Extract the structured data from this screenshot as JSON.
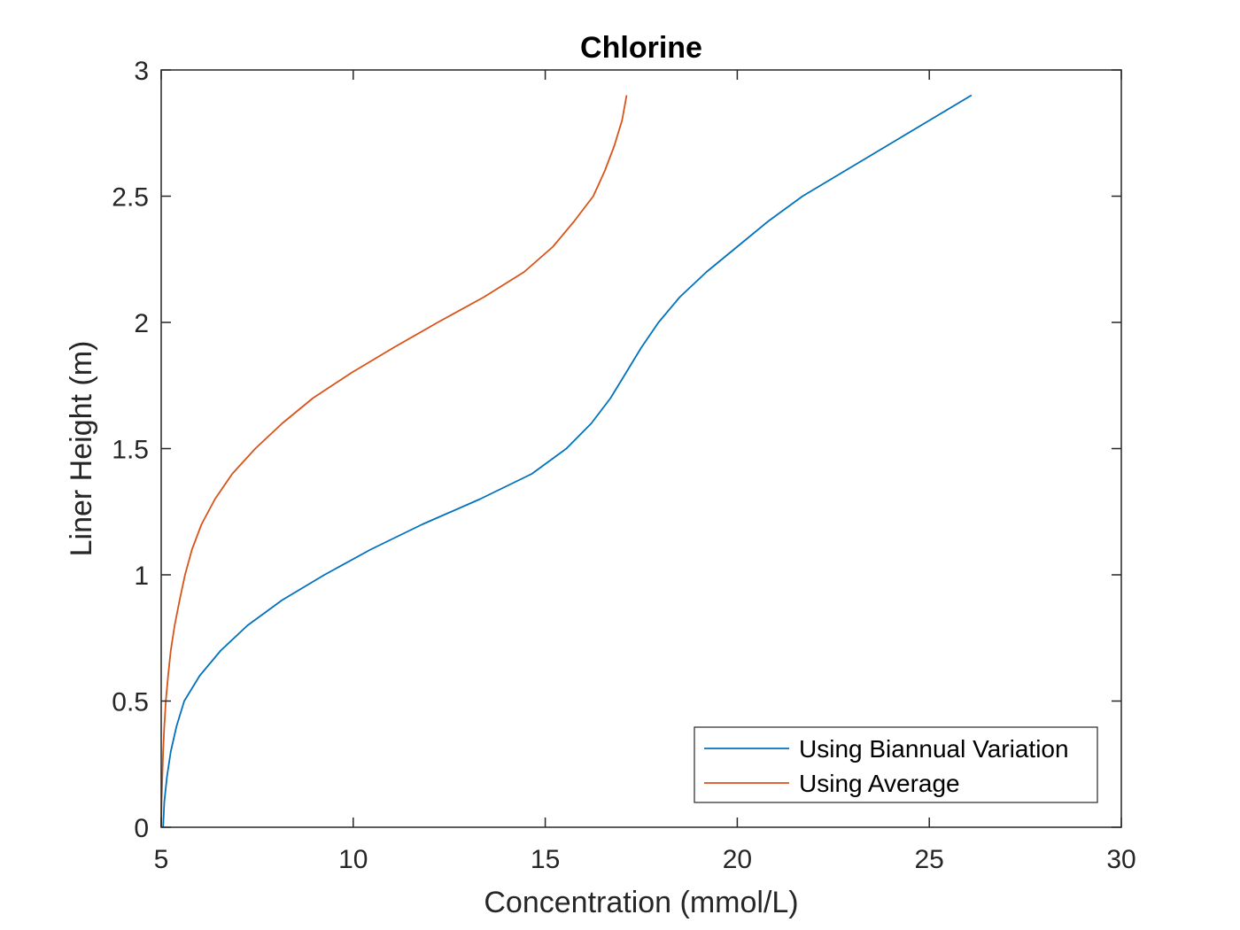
{
  "chart_data": {
    "type": "line",
    "title": "Chlorine",
    "xlabel": "Concentration (mmol/L)",
    "ylabel": "Liner Height (m)",
    "xlim": [
      5,
      30
    ],
    "ylim": [
      0,
      3
    ],
    "xticks": [
      5,
      10,
      15,
      20,
      25,
      30
    ],
    "yticks": [
      0,
      0.5,
      1,
      1.5,
      2,
      2.5,
      3
    ],
    "xtick_labels": [
      "5",
      "10",
      "15",
      "20",
      "25",
      "30"
    ],
    "ytick_labels": [
      "0",
      "0.5",
      "1",
      "1.5",
      "2",
      "2.5",
      "3"
    ],
    "grid": false,
    "legend_position": "bottom-right",
    "series": [
      {
        "name": "Using Biannual Variation",
        "color": "#0072BD",
        "x": [
          5.05,
          5.08,
          5.15,
          5.25,
          5.4,
          5.6,
          6.0,
          6.55,
          7.25,
          8.15,
          9.25,
          10.45,
          11.8,
          13.3,
          14.65,
          15.55,
          16.2,
          16.7,
          17.1,
          17.5,
          17.95,
          18.5,
          19.2,
          20.0,
          20.8,
          21.7,
          22.8,
          23.9,
          25.0,
          26.1
        ],
        "y": [
          0,
          0.1,
          0.2,
          0.3,
          0.4,
          0.5,
          0.6,
          0.7,
          0.8,
          0.9,
          1.0,
          1.1,
          1.2,
          1.3,
          1.4,
          1.5,
          1.6,
          1.7,
          1.8,
          1.9,
          2.0,
          2.1,
          2.2,
          2.3,
          2.4,
          2.5,
          2.6,
          2.7,
          2.8,
          2.9
        ]
      },
      {
        "name": "Using Average",
        "color": "#D95319",
        "x": [
          5.0,
          5.01,
          5.03,
          5.05,
          5.08,
          5.12,
          5.18,
          5.25,
          5.35,
          5.48,
          5.62,
          5.8,
          6.05,
          6.4,
          6.85,
          7.45,
          8.15,
          8.95,
          9.95,
          11.05,
          12.2,
          13.4,
          14.45,
          15.2,
          15.75,
          16.25,
          16.55,
          16.8,
          17.0,
          17.12
        ],
        "y": [
          0,
          0.1,
          0.2,
          0.3,
          0.4,
          0.5,
          0.6,
          0.7,
          0.8,
          0.9,
          1.0,
          1.1,
          1.2,
          1.3,
          1.4,
          1.5,
          1.6,
          1.7,
          1.8,
          1.9,
          2.0,
          2.1,
          2.2,
          2.3,
          2.4,
          2.5,
          2.6,
          2.7,
          2.8,
          2.9
        ]
      }
    ]
  }
}
